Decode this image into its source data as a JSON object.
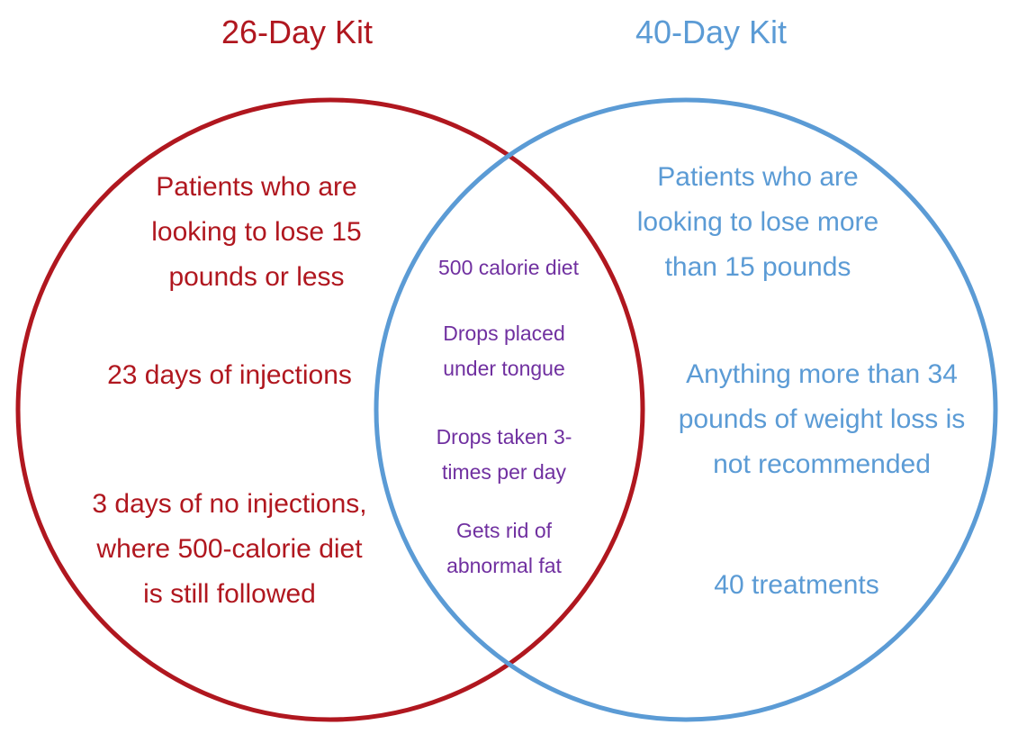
{
  "left_set": {
    "title": "26-Day Kit",
    "color": "#B0171F",
    "items": [
      [
        "Patients who are",
        "looking to lose 15",
        "pounds or less"
      ],
      [
        "23 days of injections"
      ],
      [
        "3 days of no injections,",
        "where 500-calorie diet",
        "is still followed"
      ]
    ]
  },
  "right_set": {
    "title": "40-Day Kit",
    "color": "#5B9BD5",
    "items": [
      [
        "Patients who are",
        "looking to lose more",
        "than 15 pounds"
      ],
      [
        "Anything more than 34",
        "pounds of weight loss is",
        "not recommended"
      ],
      [
        "40 treatments"
      ]
    ]
  },
  "intersection": {
    "color": "#7030A0",
    "items": [
      [
        "500 calorie diet"
      ],
      [
        "Drops placed",
        "under tongue"
      ],
      [
        "Drops taken 3-",
        "times per day"
      ],
      [
        "Gets rid of",
        "abnormal fat"
      ]
    ]
  }
}
